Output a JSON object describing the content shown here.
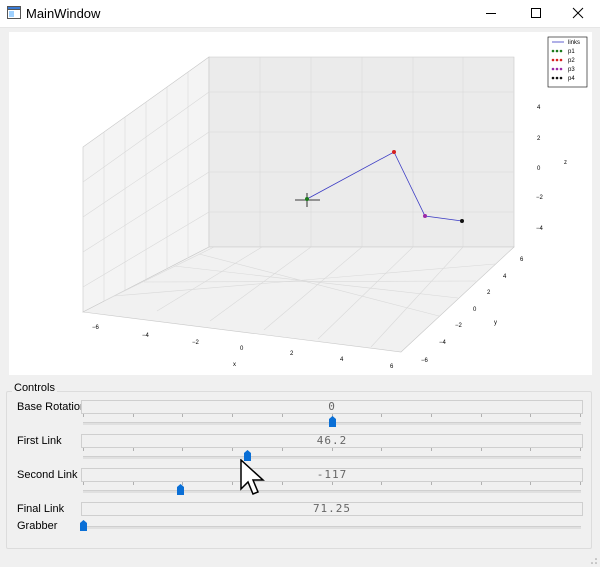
{
  "window": {
    "title": "MainWindow",
    "icon": "app-window-icon",
    "buttons": [
      "minimize-icon",
      "maximize-icon",
      "close-icon"
    ]
  },
  "plot": {
    "axis_labels": {
      "x": "x",
      "y": "y",
      "z": "z"
    },
    "x_ticks": [
      "−6",
      "−4",
      "−2",
      "0",
      "2",
      "4",
      "6"
    ],
    "y_ticks": [
      "−6",
      "−4",
      "−2",
      "0",
      "2",
      "4",
      "6"
    ],
    "z_ticks": [
      "−4",
      "−2",
      "0",
      "2",
      "4"
    ],
    "legend": [
      {
        "label": "links",
        "color": "#3b3bc4",
        "kind": "line"
      },
      {
        "label": "p1",
        "color": "#1a7a1a",
        "kind": "dots"
      },
      {
        "label": "p2",
        "color": "#d62020",
        "kind": "dots"
      },
      {
        "label": "p3",
        "color": "#9a2aa8",
        "kind": "dots"
      },
      {
        "label": "p4",
        "color": "#111111",
        "kind": "dots"
      }
    ],
    "colors": {
      "links": "#3b3bc4",
      "p1": "#1a7a1a",
      "p2": "#d62020",
      "p3": "#9a2aa8",
      "p4": "#111111"
    }
  },
  "controls": {
    "title": "Controls",
    "rows": [
      {
        "label": "Base Rotation",
        "display": "0",
        "level": 0.5
      },
      {
        "label": "First Link",
        "display": "46.2",
        "level": 0.33
      },
      {
        "label": "Second Link",
        "display": "-117",
        "level": 0.195
      },
      {
        "label": "Final Link",
        "display": "71.25",
        "level": null
      },
      {
        "label": "Grabber",
        "display": "",
        "level": 0.0
      }
    ],
    "slider_color": "#0a6fd6"
  }
}
